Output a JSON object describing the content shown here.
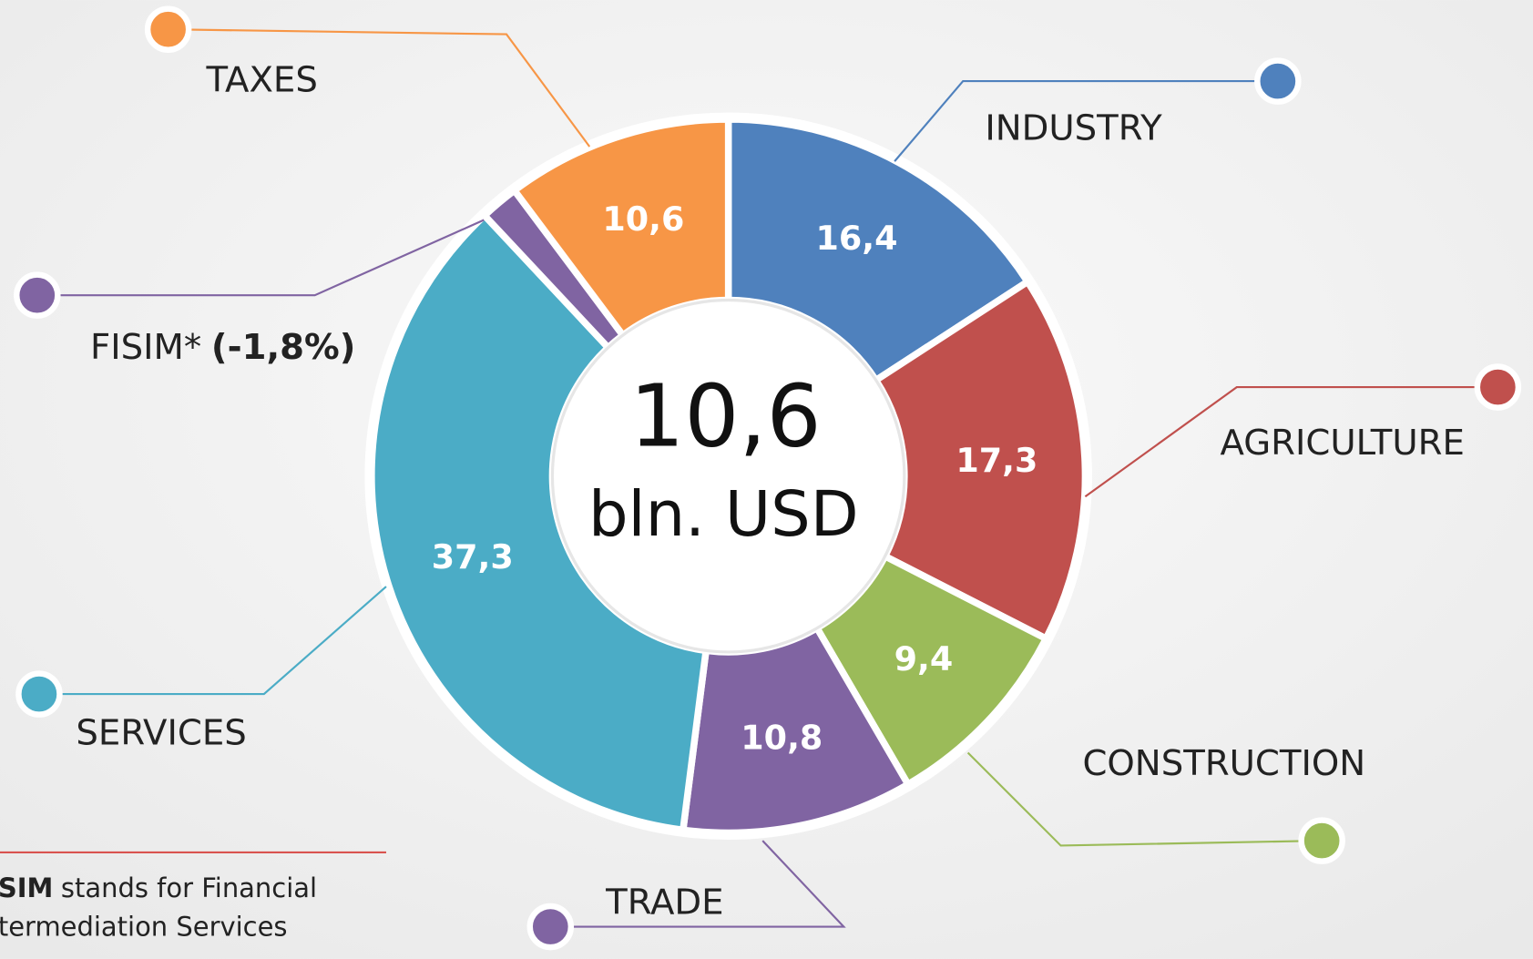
{
  "chart_data": {
    "type": "donut",
    "center_value": "10,6",
    "center_unit": "bln. USD",
    "categories": [
      "INDUSTRY",
      "AGRICULTURE",
      "CONSTRUCTION",
      "TRADE",
      "SERVICES",
      "FISIM*",
      "TAXES"
    ],
    "values": [
      16.4,
      17.3,
      9.4,
      10.8,
      37.3,
      -1.8,
      10.6
    ],
    "value_labels": [
      "16,4",
      "17,3",
      "9,4",
      "10,8",
      "37,3",
      "(-1,8%)",
      "10,6"
    ],
    "colors": [
      "#4f81bd",
      "#c0504d",
      "#9bbb59",
      "#8064a2",
      "#4bacc6",
      "#8064a2",
      "#f79646"
    ],
    "footnote": {
      "term": "SIM",
      "lines": [
        "stands for Financial",
        "termediation Services"
      ]
    }
  }
}
